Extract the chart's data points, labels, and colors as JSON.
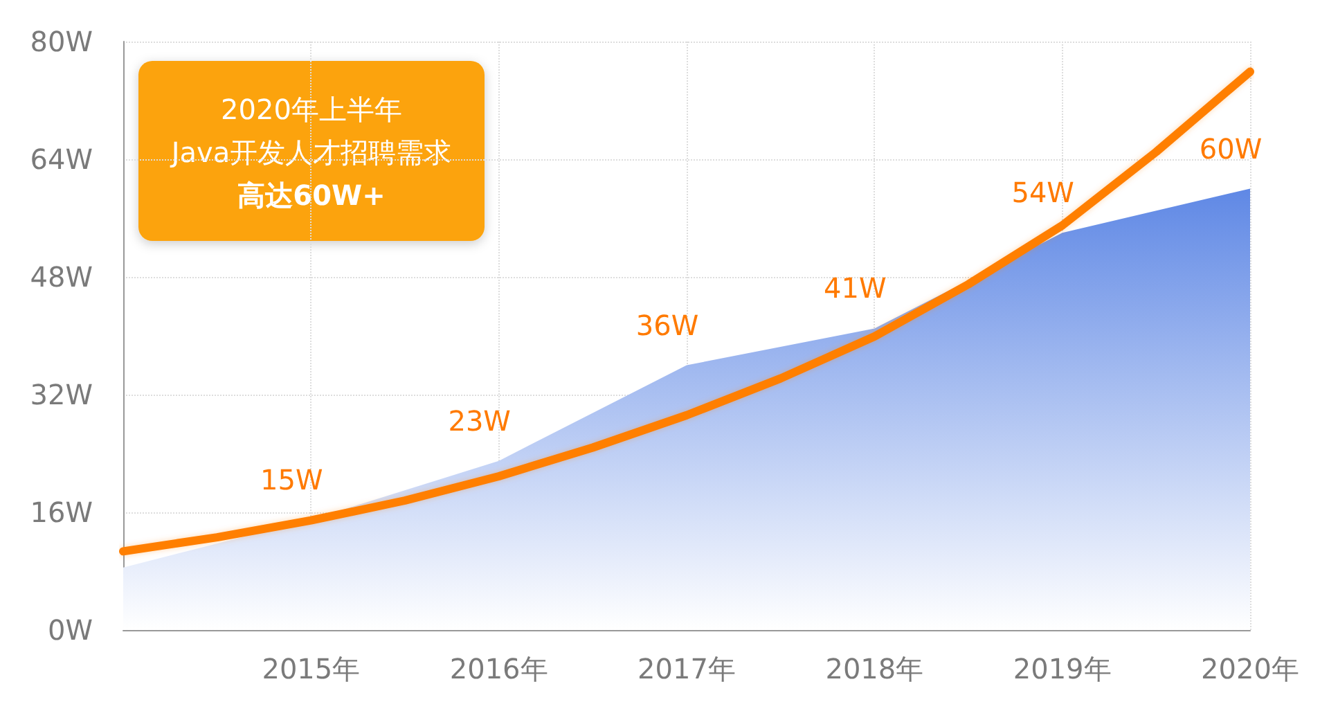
{
  "chart_data": {
    "type": "area",
    "x": [
      2014,
      2015,
      2016,
      2017,
      2018,
      2019,
      2020
    ],
    "series": [
      {
        "color": "#5f88e5",
        "values": [
          8.5,
          15,
          23,
          36,
          41,
          54,
          60
        ],
        "value_labels": [
          null,
          "15W",
          "23W",
          "36W",
          "41W",
          "54W",
          "60W"
        ]
      },
      {
        "type": "line",
        "color": "#ff7f00",
        "x": [
          2014,
          2014.5,
          2015,
          2015.5,
          2016,
          2016.5,
          2017,
          2017.5,
          2018,
          2018.5,
          2019,
          2019.5,
          2020
        ],
        "values": [
          10.7,
          12.6,
          14.9,
          17.6,
          20.9,
          24.8,
          29.2,
          34.2,
          39.9,
          47,
          55,
          65,
          75.9
        ]
      }
    ],
    "xlim": [
      2014,
      2020
    ],
    "xticks": [
      {
        "value": 2015,
        "label": "2015年"
      },
      {
        "value": 2016,
        "label": "2016年"
      },
      {
        "value": 2017,
        "label": "2017年"
      },
      {
        "value": 2018,
        "label": "2018年"
      },
      {
        "value": 2019,
        "label": "2019年"
      },
      {
        "value": 2020,
        "label": "2020年"
      }
    ],
    "ylim": [
      0,
      80
    ],
    "yticks": [
      {
        "value": 0,
        "label": "0W"
      },
      {
        "value": 16,
        "label": "16W"
      },
      {
        "value": 32,
        "label": "32W"
      },
      {
        "value": 48,
        "label": "48W"
      },
      {
        "value": 64,
        "label": "64W"
      },
      {
        "value": 80,
        "label": "80W"
      }
    ],
    "grid": true,
    "marker": "none",
    "annotations": [
      "2020年上半年",
      "Java开发人才招聘需求",
      "高达60W+"
    ]
  }
}
